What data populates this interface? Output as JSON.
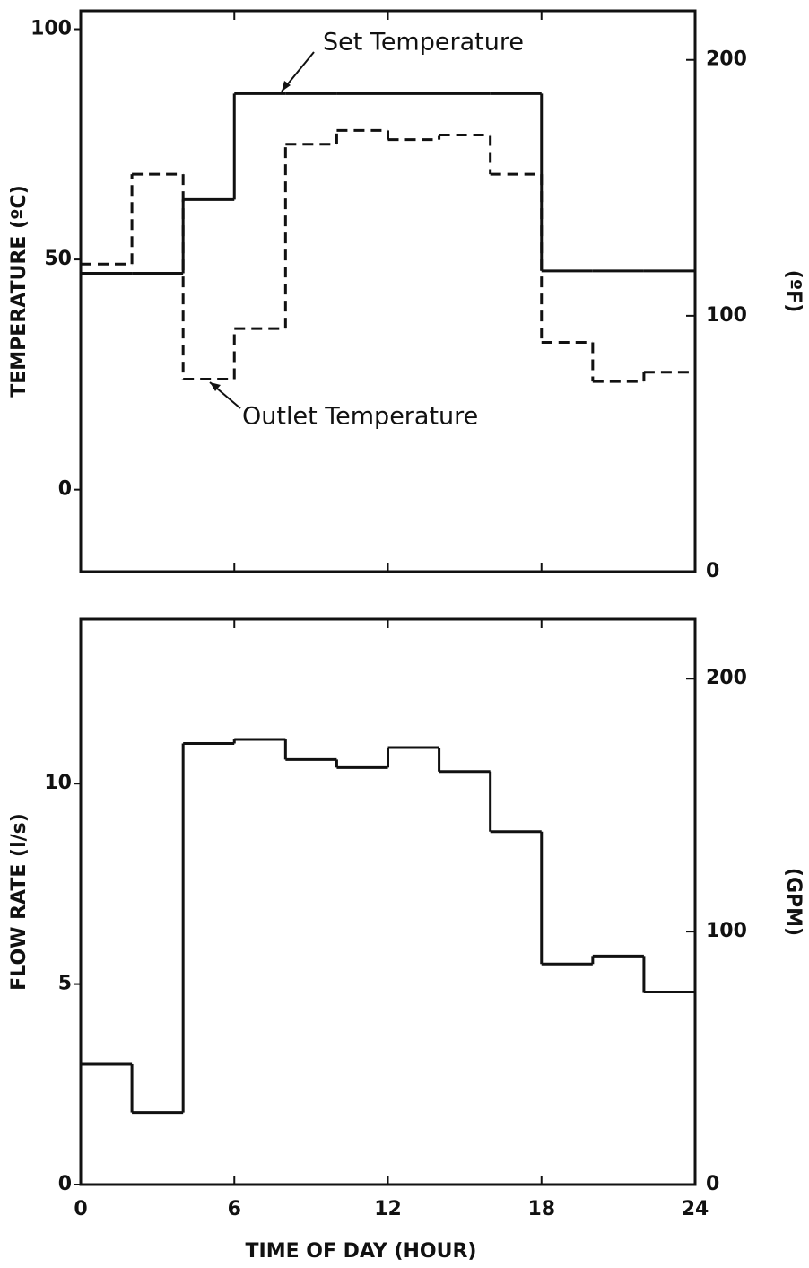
{
  "chart_data": [
    {
      "type": "step",
      "ylabel": "TEMPERATURE (ºC)",
      "y2label": "(ºF)",
      "x": [
        0,
        2,
        4,
        6,
        8,
        10,
        12,
        14,
        16,
        18,
        20,
        22
      ],
      "xlim": [
        0,
        24
      ],
      "xticks": [
        0,
        6,
        12,
        18,
        24
      ],
      "ylim": [
        -17.8,
        104
      ],
      "yticks": [
        0,
        50,
        100
      ],
      "y2lim": [
        0,
        219.2
      ],
      "y2ticks": [
        0,
        100,
        200
      ],
      "series": [
        {
          "name": "Set Temperature",
          "color": "#111111",
          "dashed": false,
          "values": [
            47,
            47,
            63,
            86,
            86,
            86,
            86,
            86,
            86,
            47.5,
            47.5,
            47.5
          ]
        },
        {
          "name": "Outlet Temperature",
          "color": "#111111",
          "dashed": true,
          "values": [
            49,
            68.5,
            24,
            35,
            75,
            78,
            76,
            77,
            68.5,
            32,
            23.5,
            25.5
          ]
        }
      ]
    },
    {
      "type": "step",
      "ylabel": "FLOW RATE (l/s)",
      "y2label": "(GPM)",
      "xlabel": "TIME OF DAY (HOUR)",
      "x": [
        0,
        2,
        4,
        6,
        8,
        10,
        12,
        14,
        16,
        18,
        20,
        22
      ],
      "xlim": [
        0,
        24
      ],
      "xticks": [
        0,
        6,
        12,
        18,
        24
      ],
      "ylim": [
        0,
        14.1
      ],
      "yticks": [
        0,
        5,
        10
      ],
      "y2lim": [
        0,
        223.5
      ],
      "y2ticks": [
        0,
        100,
        200
      ],
      "series": [
        {
          "color": "#111111",
          "dashed": false,
          "values": [
            3.0,
            1.8,
            11.0,
            11.1,
            10.6,
            10.4,
            10.9,
            10.3,
            8.8,
            5.5,
            5.7,
            4.8
          ]
        }
      ]
    }
  ]
}
